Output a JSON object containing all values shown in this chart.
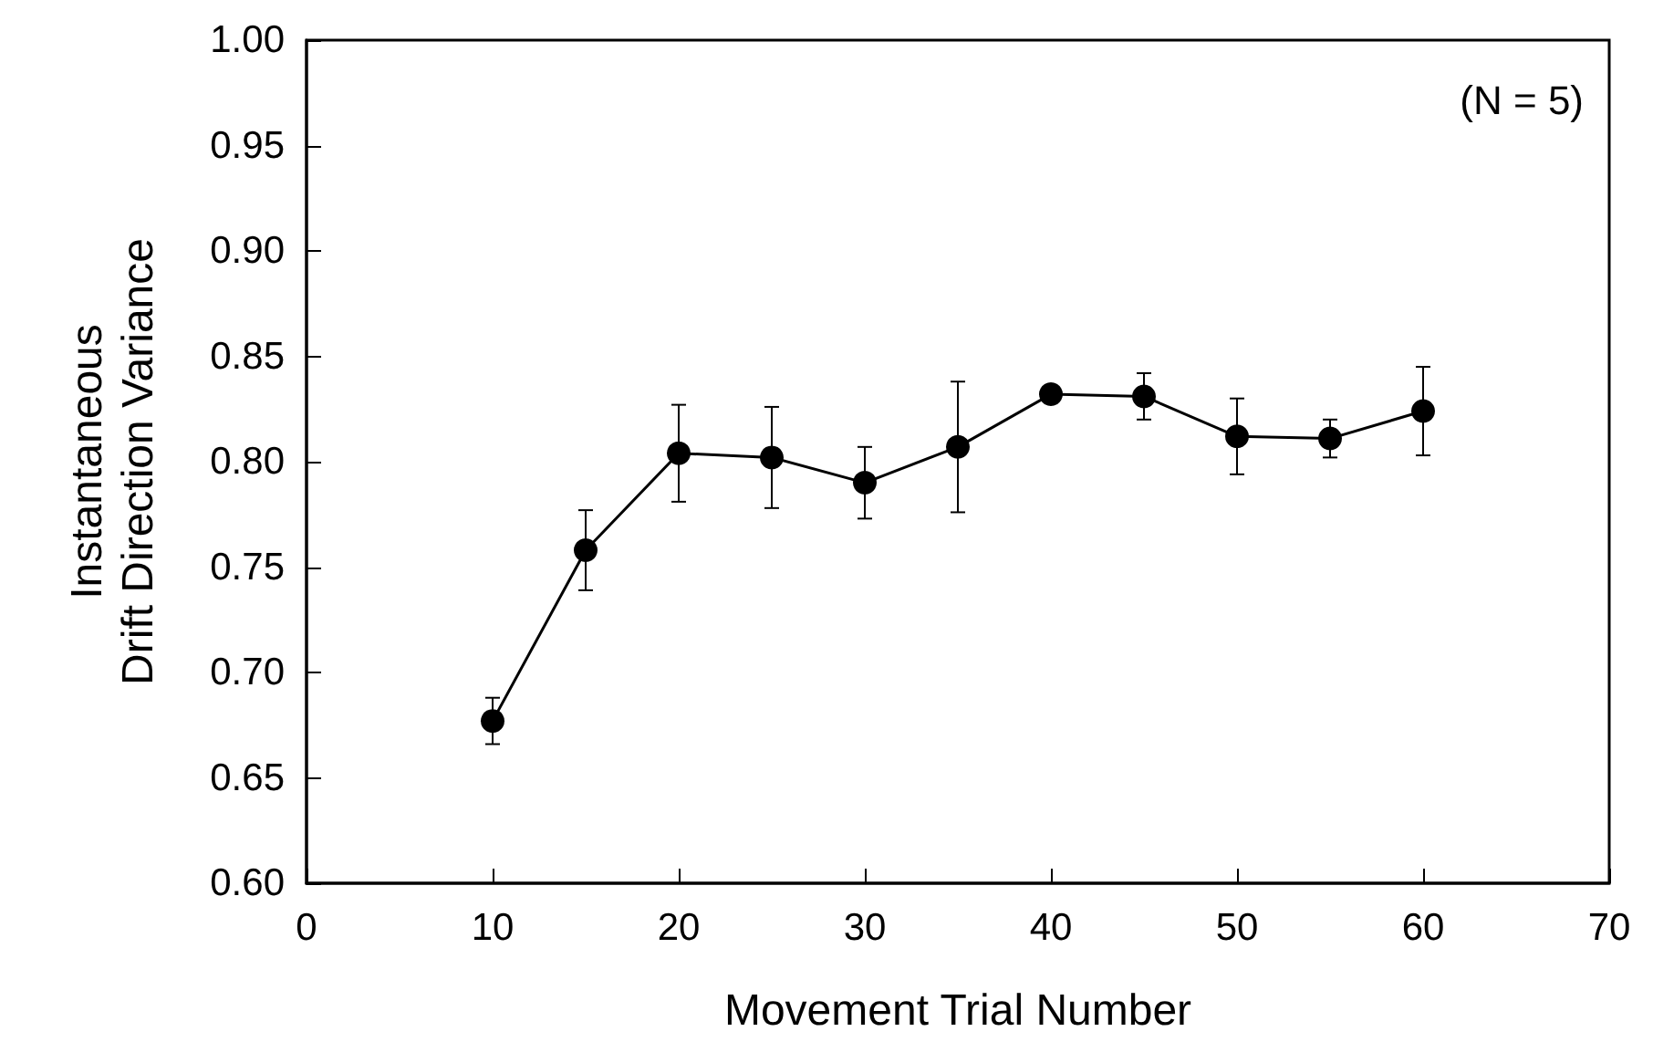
{
  "chart_data": {
    "type": "line",
    "xlabel": "Movement Trial Number",
    "ylabel": "Instantaneous\nDrift Direction Variance",
    "annotations": [
      "(N = 5)"
    ],
    "x": [
      10,
      15,
      20,
      25,
      30,
      35,
      40,
      45,
      50,
      55,
      60
    ],
    "series": [
      {
        "color": "#000000",
        "values": [
          0.677,
          0.758,
          0.804,
          0.802,
          0.79,
          0.807,
          0.832,
          0.831,
          0.812,
          0.811,
          0.824
        ],
        "errors": [
          [
            0.666,
            0.688
          ],
          [
            0.739,
            0.777
          ],
          [
            0.781,
            0.827
          ],
          [
            0.778,
            0.826
          ],
          [
            0.773,
            0.807
          ],
          [
            0.776,
            0.838
          ],
          [
            0.828,
            0.836
          ],
          [
            0.82,
            0.842
          ],
          [
            0.794,
            0.83
          ],
          [
            0.802,
            0.82
          ],
          [
            0.803,
            0.845
          ]
        ]
      }
    ],
    "xlim": [
      0,
      70
    ],
    "xticks": [
      0,
      10,
      20,
      30,
      40,
      50,
      60,
      70
    ],
    "ylim": [
      0.6,
      1.0
    ],
    "yticks": [
      {
        "value": 0.6,
        "label": "0.60"
      },
      0.65,
      {
        "value": 0.7,
        "label": "0.70"
      },
      0.75,
      {
        "value": 0.8,
        "label": "0.80"
      },
      0.85,
      {
        "value": 0.9,
        "label": "0.90"
      },
      0.95,
      {
        "value": 1.0,
        "label": "1.00"
      }
    ],
    "marker": "circle",
    "line_style": "solid"
  }
}
